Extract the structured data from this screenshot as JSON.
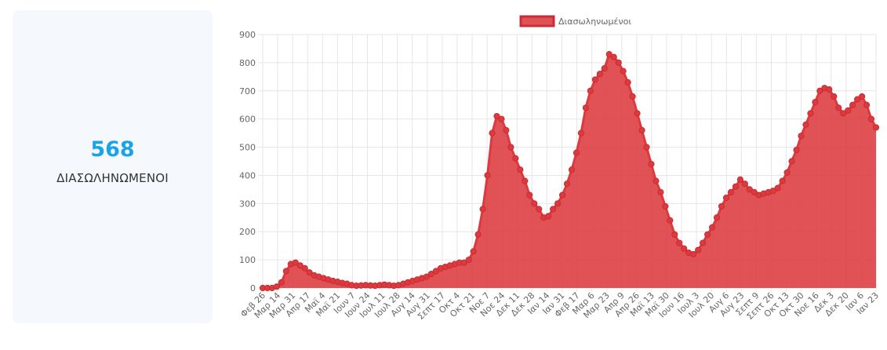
{
  "stat": {
    "value": "568",
    "label": "ΔΙΑΣΩΛΗΝΩΜΕΝΟΙ"
  },
  "chart_data": {
    "type": "area",
    "legend_position": "top-center",
    "grid": true,
    "ylim": [
      0,
      900
    ],
    "yticks": [
      0,
      100,
      200,
      300,
      400,
      500,
      600,
      700,
      800,
      900
    ],
    "xtick_labels": [
      "Φεβ 26",
      "Μαρ 14",
      "Μαρ 31",
      "Απρ 17",
      "Μαϊ 4",
      "Μαϊ 21",
      "Ιουν 7",
      "Ιουν 24",
      "Ιουλ 11",
      "Ιουλ 28",
      "Αυγ 14",
      "Αυγ 31",
      "Σεπτ 17",
      "Οκτ 4",
      "Οκτ 21",
      "Νοε 7",
      "Νοε 24",
      "Δεκ 11",
      "Δεκ 28",
      "Ιαν 14",
      "Ιαν 31",
      "Φεβ 17",
      "Μαρ 6",
      "Μαρ 23",
      "Απρ 9",
      "Απρ 26",
      "Μαϊ 13",
      "Μαϊ 30",
      "Ιουν 16",
      "Ιουλ 3",
      "Ιουλ 20",
      "Αυγ 6",
      "Αυγ 23",
      "Σεπτ 9",
      "Σεπτ 26",
      "Οκτ 13",
      "Οκτ 30",
      "Νοε 16",
      "Δεκ 3",
      "Δεκ 20",
      "Ιαν 6",
      "Ιαν 23"
    ],
    "series": [
      {
        "name": "Διασωληνωμένοι",
        "color": "#dc3a3e",
        "fill": "#dc3a3e",
        "values": [
          0,
          0,
          0,
          5,
          20,
          60,
          85,
          90,
          80,
          70,
          55,
          45,
          40,
          35,
          30,
          25,
          22,
          18,
          15,
          10,
          8,
          9,
          10,
          9,
          8,
          10,
          12,
          10,
          8,
          10,
          15,
          20,
          25,
          30,
          35,
          40,
          50,
          60,
          70,
          75,
          80,
          85,
          90,
          90,
          100,
          130,
          190,
          280,
          400,
          550,
          610,
          600,
          560,
          500,
          460,
          420,
          380,
          330,
          300,
          280,
          250,
          255,
          280,
          300,
          330,
          370,
          420,
          480,
          550,
          640,
          700,
          740,
          760,
          780,
          830,
          820,
          800,
          770,
          730,
          680,
          620,
          560,
          500,
          440,
          380,
          340,
          290,
          240,
          190,
          160,
          140,
          125,
          120,
          135,
          160,
          190,
          215,
          250,
          290,
          320,
          340,
          360,
          385,
          370,
          350,
          340,
          330,
          335,
          340,
          345,
          355,
          380,
          410,
          450,
          490,
          540,
          580,
          620,
          660,
          700,
          710,
          705,
          680,
          640,
          620,
          630,
          650,
          670,
          680,
          650,
          600,
          570
        ]
      }
    ]
  }
}
